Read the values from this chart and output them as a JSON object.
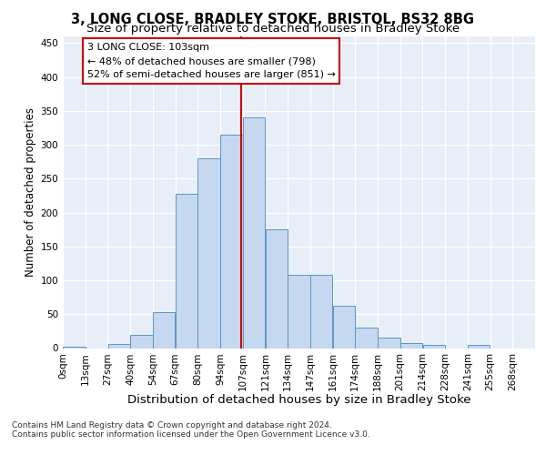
{
  "title1": "3, LONG CLOSE, BRADLEY STOKE, BRISTOL, BS32 8BG",
  "title2": "Size of property relative to detached houses in Bradley Stoke",
  "xlabel": "Distribution of detached houses by size in Bradley Stoke",
  "ylabel": "Number of detached properties",
  "footer1": "Contains HM Land Registry data © Crown copyright and database right 2024.",
  "footer2": "Contains public sector information licensed under the Open Government Licence v3.0.",
  "bin_labels": [
    "0sqm",
    "13sqm",
    "27sqm",
    "40sqm",
    "54sqm",
    "67sqm",
    "80sqm",
    "94sqm",
    "107sqm",
    "121sqm",
    "134sqm",
    "147sqm",
    "161sqm",
    "174sqm",
    "188sqm",
    "201sqm",
    "214sqm",
    "228sqm",
    "241sqm",
    "255sqm",
    "268sqm"
  ],
  "bar_values": [
    2,
    0,
    6,
    20,
    53,
    228,
    280,
    315,
    340,
    175,
    108,
    108,
    62,
    30,
    16,
    8,
    5,
    0,
    5,
    0,
    0
  ],
  "bar_color": "#c5d8f0",
  "bar_edge_color": "#5a96c8",
  "vline_color": "#cc0000",
  "annotation_text": "3 LONG CLOSE: 103sqm\n← 48% of detached houses are smaller (798)\n52% of semi-detached houses are larger (851) →",
  "annotation_box_edge_color": "#cc0000",
  "ylim": [
    0,
    460
  ],
  "yticks": [
    0,
    50,
    100,
    150,
    200,
    250,
    300,
    350,
    400,
    450
  ],
  "bg_color": "#e8eef8",
  "title1_fontsize": 10.5,
  "title2_fontsize": 9.5,
  "xlabel_fontsize": 9.5,
  "ylabel_fontsize": 8.5,
  "annotation_fontsize": 8,
  "bin_width": 13
}
